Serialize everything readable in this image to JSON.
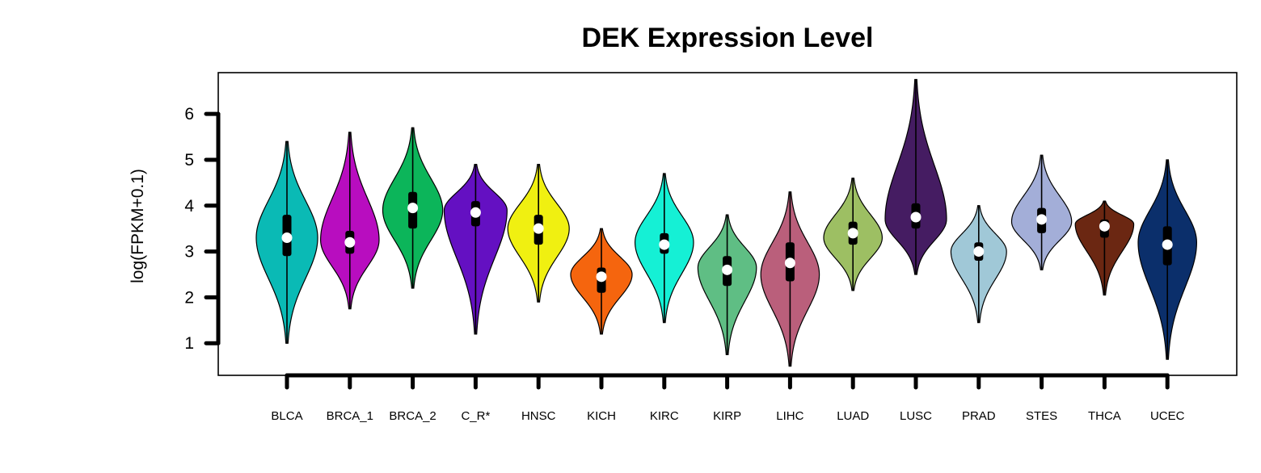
{
  "chart_data": {
    "type": "violin",
    "title": "DEK Expression Level",
    "ylabel": "log(FPKM+0.1)",
    "ylim": [
      0.3,
      6.9
    ],
    "yticks": [
      1,
      2,
      3,
      4,
      5,
      6
    ],
    "grid": false,
    "categories": [
      "BLCA",
      "BRCA_1",
      "BRCA_2",
      "C_R*",
      "HNSC",
      "KICH",
      "KIRC",
      "KIRP",
      "LIHC",
      "LUAD",
      "LUSC",
      "PRAD",
      "STES",
      "THCA",
      "UCEC"
    ],
    "series": [
      {
        "category": "BLCA",
        "color": "#0ABAB5",
        "min": 1.0,
        "max": 5.4,
        "q1": 2.9,
        "median": 3.3,
        "q3": 3.8,
        "mode": 3.3,
        "halfwidth": 0.42
      },
      {
        "category": "BRCA_1",
        "color": "#B80DBF",
        "min": 1.75,
        "max": 5.6,
        "q1": 2.95,
        "median": 3.2,
        "q3": 3.45,
        "mode": 3.25,
        "halfwidth": 0.4
      },
      {
        "category": "BRCA_2",
        "color": "#0CB55A",
        "min": 2.2,
        "max": 5.7,
        "q1": 3.5,
        "median": 3.95,
        "q3": 4.3,
        "mode": 3.9,
        "halfwidth": 0.41
      },
      {
        "category": "C_R*",
        "color": "#6410C2",
        "min": 1.2,
        "max": 4.9,
        "q1": 3.55,
        "median": 3.85,
        "q3": 4.1,
        "mode": 3.9,
        "halfwidth": 0.43
      },
      {
        "category": "HNSC",
        "color": "#F0F011",
        "min": 1.9,
        "max": 4.9,
        "q1": 3.15,
        "median": 3.5,
        "q3": 3.8,
        "mode": 3.5,
        "halfwidth": 0.42
      },
      {
        "category": "KICH",
        "color": "#F5650E",
        "min": 1.2,
        "max": 3.5,
        "q1": 2.1,
        "median": 2.45,
        "q3": 2.65,
        "mode": 2.5,
        "halfwidth": 0.42
      },
      {
        "category": "KIRC",
        "color": "#15F0D5",
        "min": 1.45,
        "max": 4.7,
        "q1": 2.95,
        "median": 3.15,
        "q3": 3.4,
        "mode": 3.2,
        "halfwidth": 0.4
      },
      {
        "category": "KIRP",
        "color": "#5FBE84",
        "min": 0.75,
        "max": 3.8,
        "q1": 2.25,
        "median": 2.6,
        "q3": 2.9,
        "mode": 2.65,
        "halfwidth": 0.4
      },
      {
        "category": "LIHC",
        "color": "#BA5F7B",
        "min": 0.5,
        "max": 4.3,
        "q1": 2.35,
        "median": 2.75,
        "q3": 3.2,
        "mode": 2.5,
        "halfwidth": 0.4
      },
      {
        "category": "LUAD",
        "color": "#9DBF63",
        "min": 2.15,
        "max": 4.6,
        "q1": 3.15,
        "median": 3.4,
        "q3": 3.65,
        "mode": 3.3,
        "halfwidth": 0.4
      },
      {
        "category": "LUSC",
        "color": "#451C62",
        "min": 2.5,
        "max": 6.75,
        "q1": 3.5,
        "median": 3.75,
        "q3": 4.05,
        "mode": 3.7,
        "halfwidth": 0.42
      },
      {
        "category": "PRAD",
        "color": "#A0C8D7",
        "min": 1.45,
        "max": 4.0,
        "q1": 2.8,
        "median": 3.0,
        "q3": 3.2,
        "mode": 3.0,
        "halfwidth": 0.38
      },
      {
        "category": "STES",
        "color": "#A3AED8",
        "min": 2.6,
        "max": 5.1,
        "q1": 3.4,
        "median": 3.7,
        "q3": 3.95,
        "mode": 3.65,
        "halfwidth": 0.41
      },
      {
        "category": "THCA",
        "color": "#6B2712",
        "min": 2.05,
        "max": 4.1,
        "q1": 3.3,
        "median": 3.55,
        "q3": 3.7,
        "mode": 3.6,
        "halfwidth": 0.4
      },
      {
        "category": "UCEC",
        "color": "#0B2F6B",
        "min": 0.65,
        "max": 5.0,
        "q1": 2.7,
        "median": 3.15,
        "q3": 3.55,
        "mode": 3.2,
        "halfwidth": 0.4
      }
    ]
  }
}
